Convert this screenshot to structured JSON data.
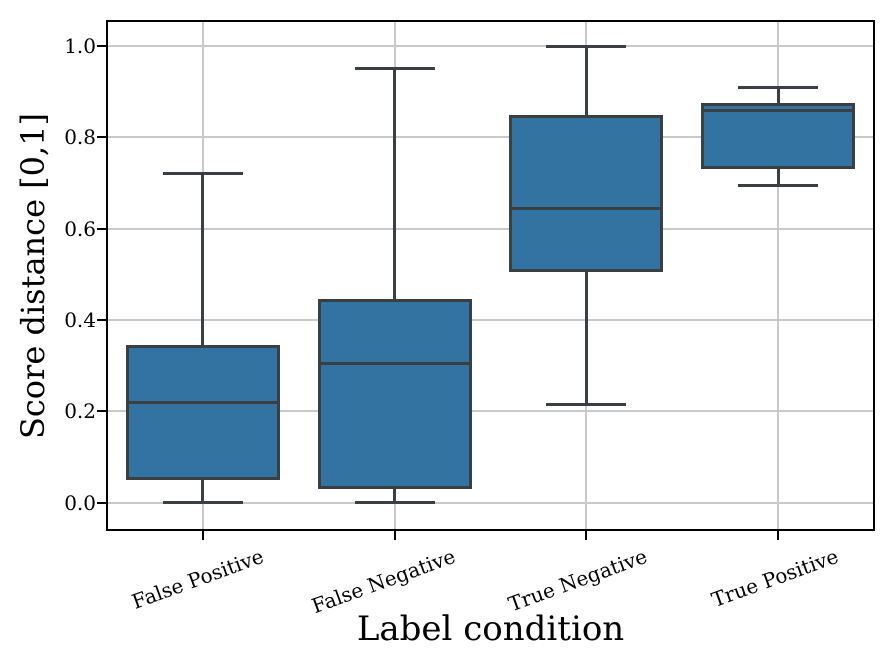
{
  "chart_data": {
    "type": "boxplot",
    "title": "",
    "xlabel": "Label condition",
    "ylabel": "Score distance [0,1]",
    "categories": [
      "False Positive",
      "False Negative",
      "True Negative",
      "True Positive"
    ],
    "ytick_labels": [
      "0.0",
      "0.2",
      "0.4",
      "0.6",
      "0.8",
      "1.0"
    ],
    "yticks": [
      0.0,
      0.2,
      0.4,
      0.6,
      0.8,
      1.0
    ],
    "ylim": [
      -0.06,
      1.055
    ],
    "grid": true,
    "x_tick_rotation_deg": 20,
    "legend": null,
    "boxes": [
      {
        "category": "False Positive",
        "whisker_low": 0.0,
        "q1": 0.05,
        "median": 0.22,
        "q3": 0.345,
        "whisker_high": 0.72
      },
      {
        "category": "False Negative",
        "whisker_low": 0.0,
        "q1": 0.03,
        "median": 0.305,
        "q3": 0.445,
        "whisker_high": 0.95
      },
      {
        "category": "True Negative",
        "whisker_low": 0.215,
        "q1": 0.505,
        "median": 0.645,
        "q3": 0.85,
        "whisker_high": 1.0
      },
      {
        "category": "True Positive",
        "whisker_low": 0.695,
        "q1": 0.73,
        "median": 0.86,
        "q3": 0.875,
        "whisker_high": 0.91
      }
    ],
    "colors": {
      "box_fill": "#3273a1",
      "box_edge": "#3a3f44",
      "grid": "#c9c9c9",
      "spine": "#000000",
      "text": "#000000",
      "background": "#ffffff"
    }
  }
}
